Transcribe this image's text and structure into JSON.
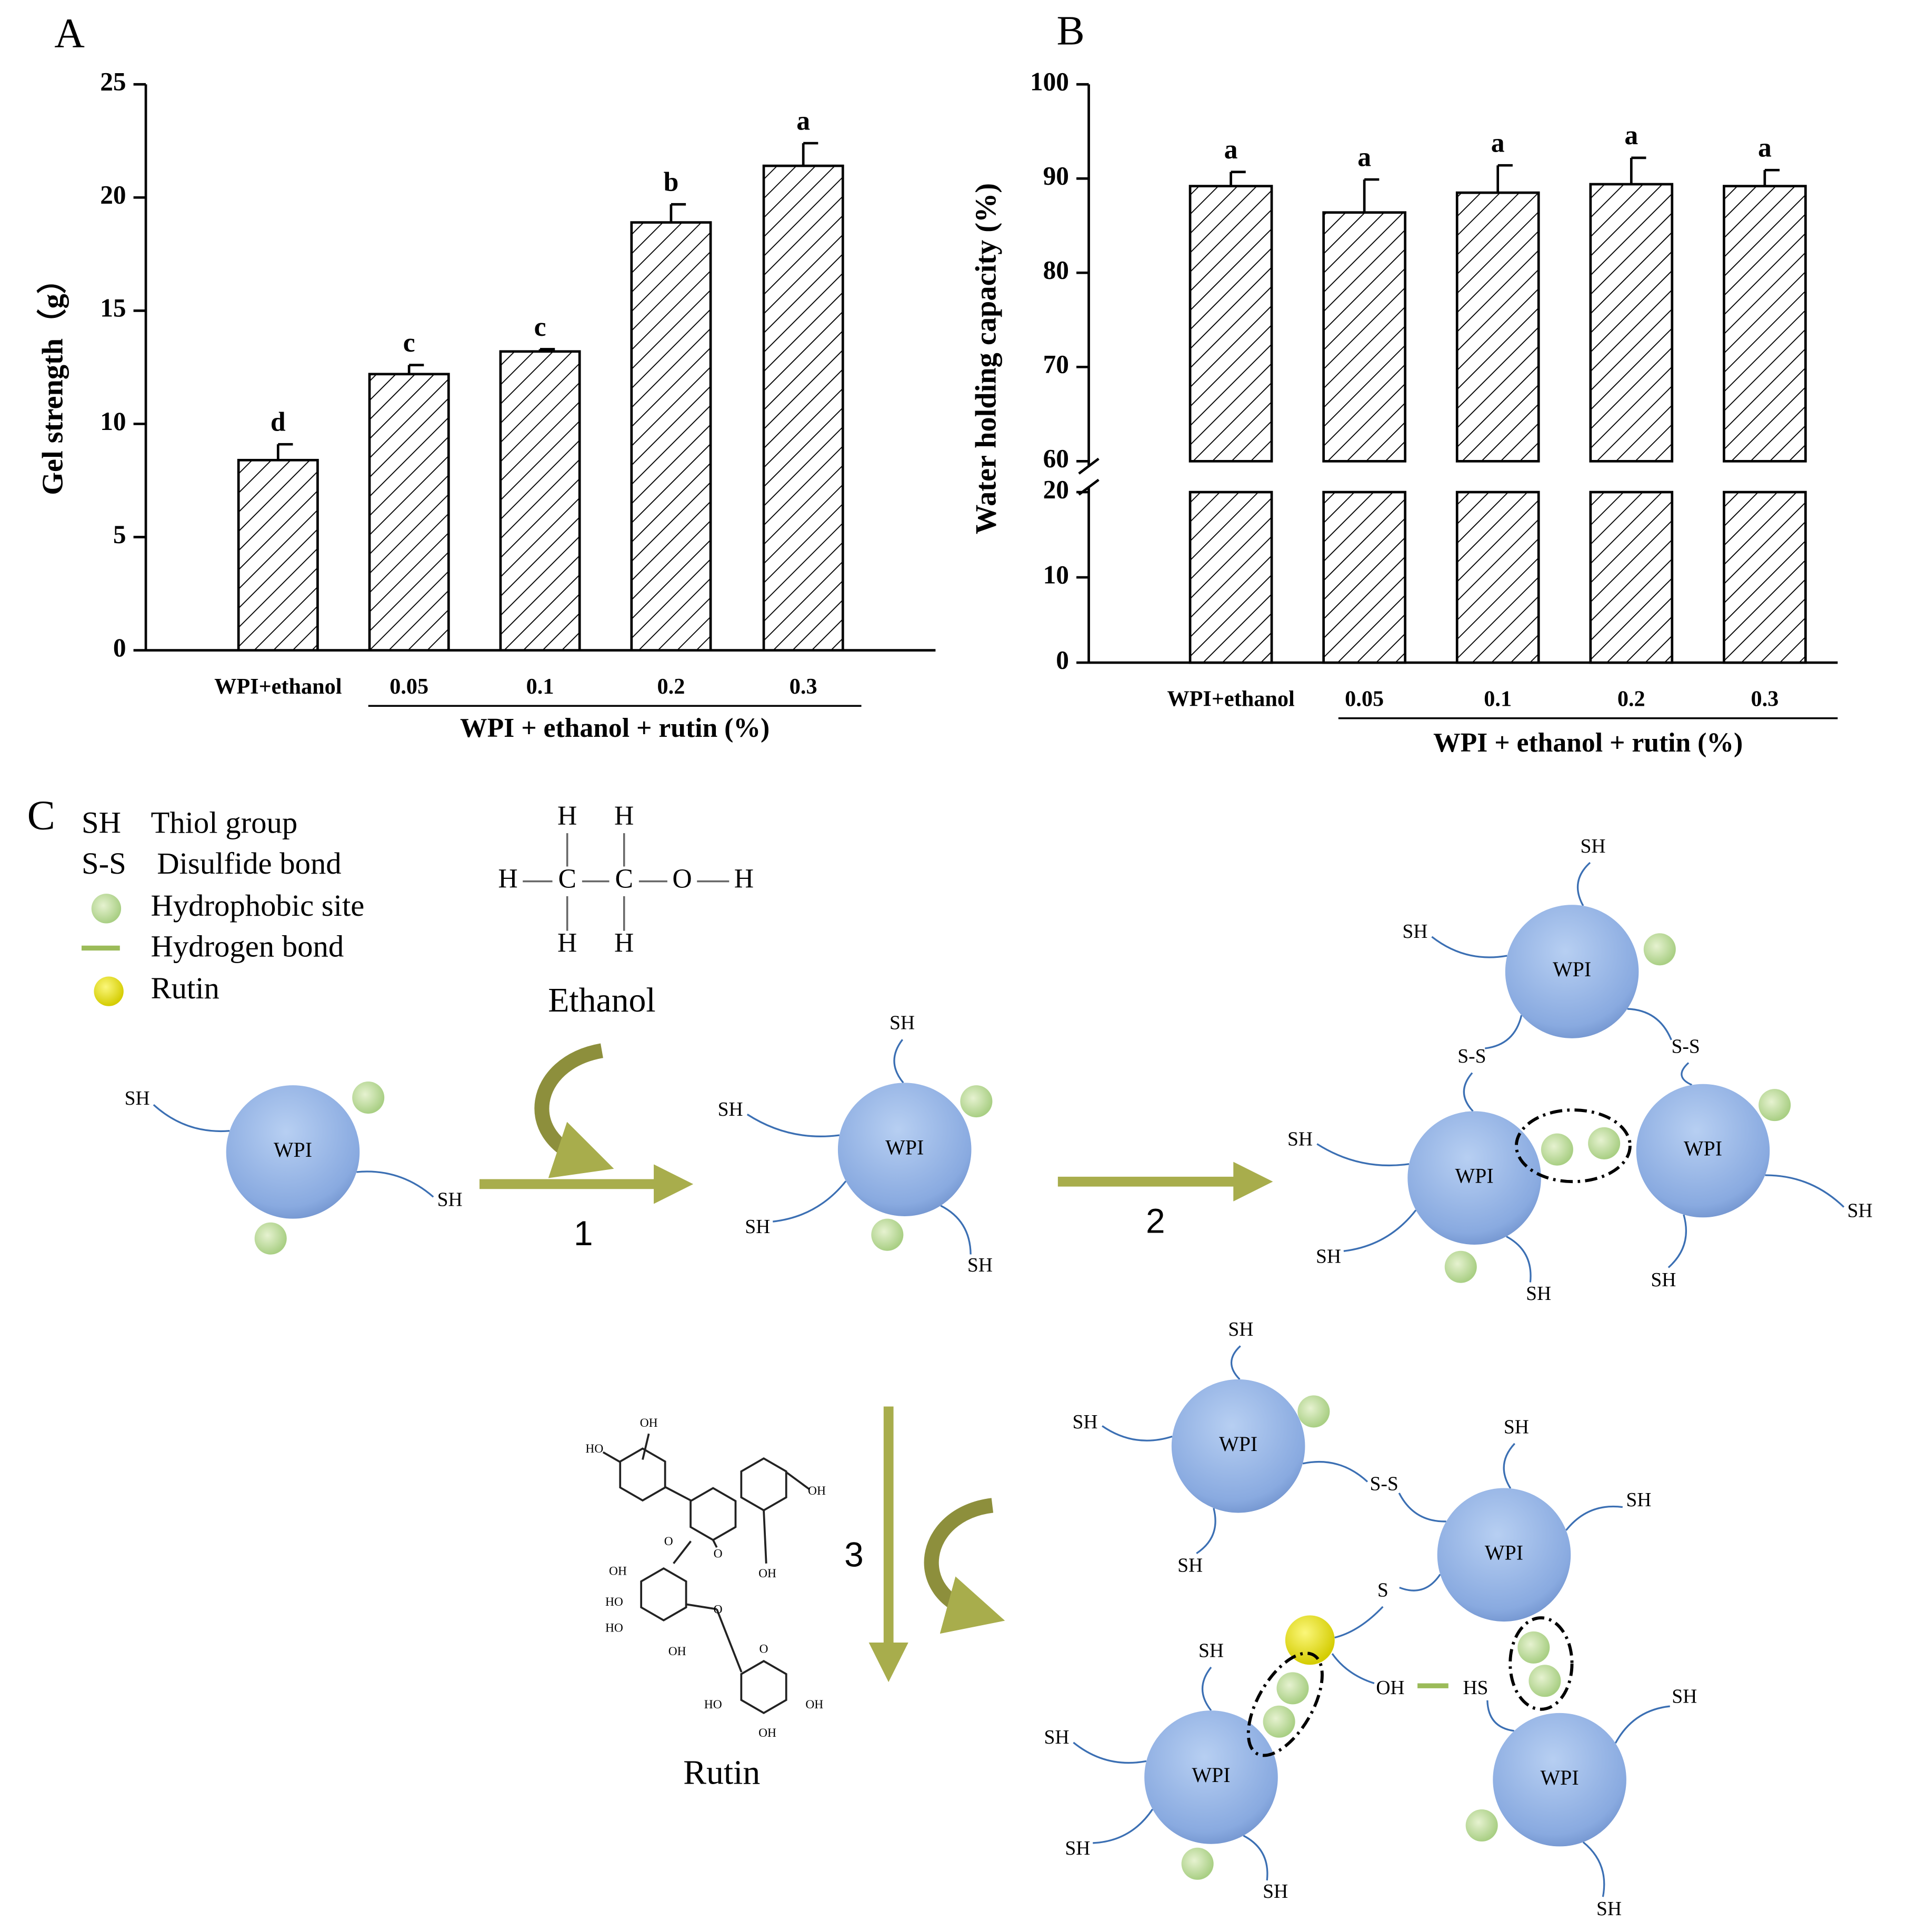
{
  "chart_data": [
    {
      "type": "bar",
      "panel_label": "A",
      "ylabel": "Gel strength（g）",
      "categories": [
        "WPI+ethanol",
        "0.05",
        "0.1",
        "0.2",
        "0.3"
      ],
      "values": [
        8.4,
        12.2,
        13.2,
        18.9,
        21.4
      ],
      "errors": [
        0.7,
        0.4,
        0.1,
        0.8,
        1.0
      ],
      "annotations": [
        "d",
        "c",
        "c",
        "b",
        "a"
      ],
      "group_label": "WPI + ethanol + rutin (%)",
      "ylim": [
        0,
        25
      ],
      "yticks": [
        0,
        5,
        10,
        15,
        20,
        25
      ],
      "color": "#ffffff",
      "hatch": true
    },
    {
      "type": "bar",
      "panel_label": "B",
      "ylabel": "Water holding capacity (%)",
      "categories": [
        "WPI+ethanol",
        "0.05",
        "0.1",
        "0.2",
        "0.3"
      ],
      "values": [
        89.2,
        86.4,
        88.5,
        89.4,
        89.2
      ],
      "errors": [
        1.5,
        3.5,
        2.9,
        2.8,
        1.7
      ],
      "annotations": [
        "a",
        "a",
        "a",
        "a",
        "a"
      ],
      "group_label": "WPI + ethanol + rutin (%)",
      "ylim": [
        0,
        100
      ],
      "axis_break": [
        20,
        60
      ],
      "yticks": [
        0,
        10,
        20,
        60,
        70,
        80,
        90,
        100
      ],
      "color": "#ffffff",
      "hatch": true
    }
  ],
  "diagram": {
    "panel_label": "C",
    "legend": [
      {
        "symbol": "SH",
        "text": "Thiol group"
      },
      {
        "symbol": "S-S",
        "text": "Disulfide bond"
      },
      {
        "text": "Hydrophobic site"
      },
      {
        "text": "Hydrogen bond"
      },
      {
        "text": "Rutin"
      }
    ],
    "ethanol": {
      "atoms": [
        "H",
        "H",
        "H",
        "C",
        "C",
        "O",
        "H",
        "H",
        "H"
      ],
      "caption": "Ethanol"
    },
    "rutin": {
      "atoms": [
        "OH",
        "HO",
        "OH",
        "O",
        "OH",
        "O",
        "OH",
        "HO",
        "HO",
        "OH",
        "O",
        "O",
        "HO",
        "OH",
        "OH"
      ],
      "caption": "Rutin"
    },
    "steps": [
      "1",
      "2",
      "3"
    ],
    "nodes": [
      "WPI",
      "WPI",
      "WPI",
      "WPI",
      "WPI",
      "WPI",
      "WPI",
      "WPI",
      "WPI"
    ],
    "groups": [
      "SH",
      "SH",
      "SH",
      "SH",
      "SH",
      "SH",
      "SH",
      "SH",
      "S-S",
      "S-S",
      "SH",
      "SH",
      "SH",
      "SH",
      "SH",
      "SH",
      "SH",
      "S-S",
      "SH",
      "SH",
      "SH",
      "S",
      "SH",
      "SH",
      "SH",
      "SH",
      "OH",
      "HS",
      "SH",
      "SH"
    ]
  }
}
